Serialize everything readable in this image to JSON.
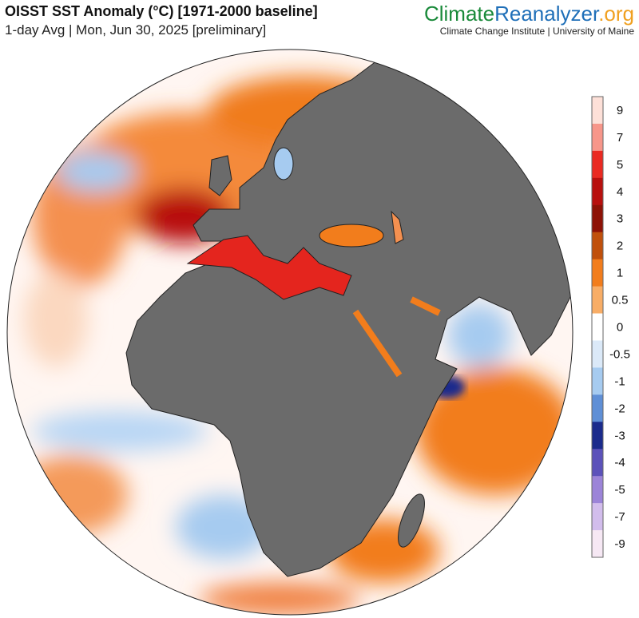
{
  "header": {
    "title": "OISST SST Anomaly (°C) [1971-2000 baseline]",
    "subtitle": "1-day Avg | Mon, Jun 30, 2025 [preliminary]"
  },
  "brand": {
    "part1": "Climate",
    "part2": "Reanalyzer",
    "part3": ".org",
    "tagline": "Climate Change Institute | University of Maine"
  },
  "colorbar": {
    "ticks": [
      9,
      7,
      5,
      4,
      3,
      2,
      1,
      0.5,
      0,
      -0.5,
      -1,
      -2,
      -3,
      -4,
      -5,
      -7,
      -9
    ],
    "colors": [
      "#fde0d8",
      "#f7968a",
      "#ea2a22",
      "#b8100e",
      "#8e1206",
      "#c0500c",
      "#f27d1c",
      "#f8ad66",
      "#ffffff",
      "#dbe9f8",
      "#a6cbf0",
      "#5f8fd6",
      "#1b2b8c",
      "#5c52ba",
      "#9c84d8",
      "#d2bdec",
      "#f6e8f4"
    ]
  }
}
